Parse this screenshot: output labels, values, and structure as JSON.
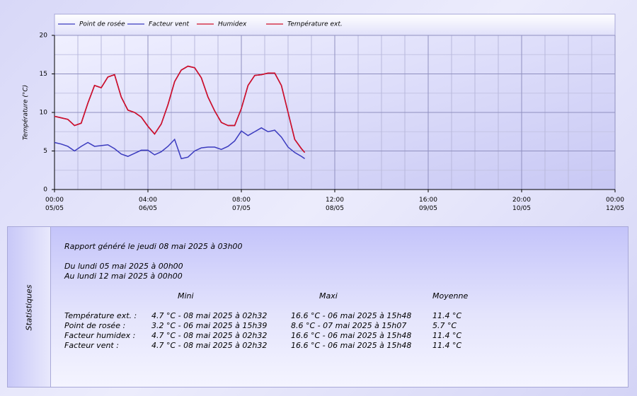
{
  "chart_data": {
    "type": "line",
    "ylabel": "Température (°C)",
    "x": [
      0,
      2,
      4,
      6,
      8,
      10,
      12,
      14,
      16,
      18,
      20,
      22,
      24,
      26,
      28,
      30,
      32,
      34,
      36,
      38,
      40,
      42,
      44,
      46,
      48,
      50,
      52,
      54,
      56,
      58,
      60,
      62,
      64,
      66,
      68,
      70,
      72,
      74,
      75
    ],
    "series": [
      {
        "name": "Point de rosée",
        "color": "#3b3bbf",
        "values": [
          6.1,
          5.9,
          5.6,
          5.0,
          5.6,
          6.1,
          5.6,
          5.7,
          5.8,
          5.3,
          4.6,
          4.3,
          4.7,
          5.1,
          5.1,
          4.5,
          4.9,
          5.6,
          6.5,
          4.0,
          4.2,
          5.0,
          5.4,
          5.5,
          5.5,
          5.2,
          5.6,
          6.3,
          7.6,
          7.0,
          7.5,
          8.0,
          7.5,
          7.7,
          6.8,
          5.5,
          4.8,
          4.3,
          4.0
        ]
      },
      {
        "name": "Facteur vent",
        "color": "#3b3bbf",
        "values": [
          9.5,
          9.3,
          9.1,
          8.3,
          8.6,
          11.2,
          13.5,
          13.2,
          14.6,
          14.9,
          12.0,
          10.3,
          10.0,
          9.4,
          8.2,
          7.2,
          8.5,
          11.0,
          14.0,
          15.5,
          16.0,
          15.8,
          14.5,
          12.0,
          10.2,
          8.7,
          8.3,
          8.3,
          10.5,
          13.5,
          14.8,
          14.9,
          15.1,
          15.1,
          13.5,
          10.0,
          6.5,
          5.3,
          4.8
        ]
      },
      {
        "name": "Humidex",
        "color": "#d0102a",
        "values": [
          9.5,
          9.3,
          9.1,
          8.3,
          8.6,
          11.2,
          13.5,
          13.2,
          14.6,
          14.9,
          12.0,
          10.3,
          10.0,
          9.4,
          8.2,
          7.2,
          8.5,
          11.0,
          14.0,
          15.5,
          16.0,
          15.8,
          14.5,
          12.0,
          10.2,
          8.7,
          8.3,
          8.3,
          10.5,
          13.5,
          14.8,
          14.9,
          15.1,
          15.1,
          13.5,
          10.0,
          6.5,
          5.3,
          4.8
        ]
      },
      {
        "name": "Température ext.",
        "color": "#d0102a",
        "values": [
          9.5,
          9.3,
          9.1,
          8.3,
          8.6,
          11.2,
          13.5,
          13.2,
          14.6,
          14.9,
          12.0,
          10.3,
          10.0,
          9.4,
          8.2,
          7.2,
          8.5,
          11.0,
          14.0,
          15.5,
          16.0,
          15.8,
          14.5,
          12.0,
          10.2,
          8.7,
          8.3,
          8.3,
          10.5,
          13.5,
          14.8,
          14.9,
          15.1,
          15.1,
          13.5,
          10.0,
          6.5,
          5.3,
          4.8
        ]
      }
    ],
    "xlim": [
      0,
      168
    ],
    "xticks": [
      {
        "value": 0,
        "label": "00:00\n05/05"
      },
      {
        "value": 28,
        "label": "04:00\n06/05"
      },
      {
        "value": 56,
        "label": "08:00\n07/05"
      },
      {
        "value": 84,
        "label": "12:00\n08/05"
      },
      {
        "value": 112,
        "label": "16:00\n09/05"
      },
      {
        "value": 140,
        "label": "20:00\n10/05"
      },
      {
        "value": 168,
        "label": "00:00\n12/05"
      }
    ],
    "xminor": [
      7,
      14,
      21,
      35,
      42,
      49,
      63,
      70,
      77,
      91,
      98,
      105,
      119,
      126,
      133,
      147,
      154,
      161
    ],
    "ylim": [
      0,
      20
    ],
    "yticks": [
      0,
      5,
      10,
      15,
      20
    ],
    "yminor": [
      2.5,
      7.5,
      12.5,
      17.5
    ],
    "grid": true,
    "legend": "top"
  },
  "stats": {
    "side_label": "Statistiques",
    "report": "Rapport généré le jeudi 08 mai 2025 à 03h00",
    "from": "Du lundi 05 mai 2025 à 00h00",
    "to": "Au lundi 12 mai 2025 à 00h00",
    "headers": [
      "Mini",
      "Maxi",
      "Moyenne"
    ],
    "rows": [
      [
        "Température ext. :",
        "4.7 °C - 08 mai 2025 à 02h32",
        "16.6 °C - 06 mai 2025 à 15h48",
        "11.4 °C"
      ],
      [
        "Point de rosée :",
        "3.2 °C - 06 mai 2025 à 15h39",
        "8.6 °C - 07 mai 2025 à 15h07",
        "5.7 °C"
      ],
      [
        "Facteur humidex :",
        "4.7 °C - 08 mai 2025 à 02h32",
        "16.6 °C - 06 mai 2025 à 15h48",
        "11.4 °C"
      ],
      [
        "Facteur vent :",
        "4.7 °C - 08 mai 2025 à 02h32",
        "16.6 °C - 06 mai 2025 à 15h48",
        "11.4 °C"
      ]
    ]
  }
}
